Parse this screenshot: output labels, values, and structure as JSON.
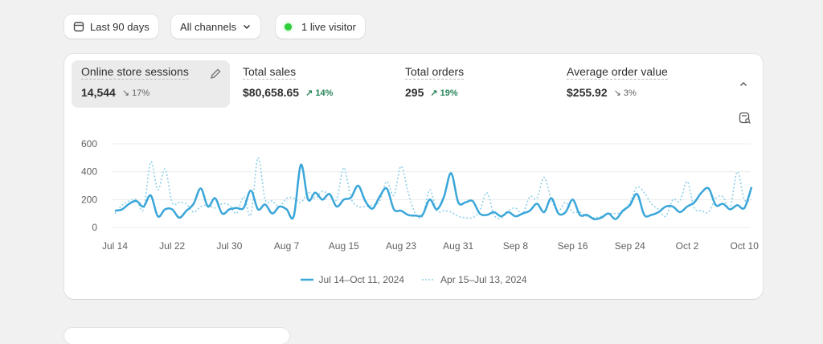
{
  "toolbar": {
    "date_range": "Last 90 days",
    "channels": "All channels",
    "live": "1 live visitor"
  },
  "metrics": [
    {
      "title": "Online store sessions",
      "value": "14,544",
      "change": "17%",
      "direction": "down"
    },
    {
      "title": "Total sales",
      "value": "$80,658.65",
      "change": "14%",
      "direction": "up"
    },
    {
      "title": "Total orders",
      "value": "295",
      "change": "19%",
      "direction": "up"
    },
    {
      "title": "Average order value",
      "value": "$255.92",
      "change": "3%",
      "direction": "down"
    }
  ],
  "colors": {
    "current": "#3aa6d9",
    "previous": "#8fcfe8",
    "live_dot": "#2ece3a",
    "up": "#29845a"
  },
  "chart_data": {
    "type": "line",
    "ylim": [
      0,
      600
    ],
    "yticks": [
      "0",
      "200",
      "400",
      "600"
    ],
    "xticks": [
      "Jul 14",
      "Jul 22",
      "Jul 30",
      "Aug 7",
      "Aug 15",
      "Aug 23",
      "Aug 31",
      "Sep 8",
      "Sep 16",
      "Sep 24",
      "Oct 2",
      "Oct 10"
    ],
    "grid": true,
    "legend": "bottom",
    "series": [
      {
        "name": "Jul 14–Oct 11, 2024",
        "style": "solid",
        "values": [
          120,
          130,
          170,
          190,
          150,
          230,
          80,
          130,
          130,
          70,
          120,
          170,
          280,
          150,
          210,
          100,
          130,
          140,
          140,
          265,
          130,
          165,
          100,
          150,
          130,
          80,
          450,
          200,
          250,
          200,
          240,
          150,
          200,
          215,
          300,
          190,
          135,
          220,
          280,
          130,
          120,
          90,
          85,
          90,
          200,
          130,
          220,
          390,
          180,
          180,
          190,
          100,
          90,
          110,
          80,
          110,
          80,
          100,
          120,
          170,
          110,
          210,
          100,
          110,
          200,
          90,
          90,
          60,
          70,
          100,
          60,
          120,
          160,
          240,
          90,
          90,
          110,
          150,
          150,
          110,
          150,
          180,
          250,
          280,
          160,
          170,
          130,
          160,
          140,
          290
        ]
      },
      {
        "name": "Apr 15–Jul 13, 2024",
        "style": "dotted",
        "values": [
          100,
          160,
          190,
          200,
          130,
          470,
          270,
          420,
          180,
          180,
          170,
          110,
          150,
          160,
          140,
          170,
          160,
          100,
          220,
          90,
          500,
          200,
          190,
          150,
          210,
          210,
          180,
          250,
          210,
          260,
          230,
          200,
          430,
          210,
          150,
          150,
          160,
          190,
          330,
          230,
          440,
          250,
          100,
          80,
          270,
          120,
          120,
          110,
          80,
          70,
          70,
          120,
          250,
          90,
          70,
          120,
          140,
          100,
          220,
          210,
          360,
          200,
          120,
          180,
          110,
          110,
          80,
          70,
          80,
          100,
          100,
          110,
          180,
          290,
          250,
          170,
          130,
          80,
          200,
          190,
          330,
          140,
          120,
          110,
          210,
          220,
          140,
          400,
          200,
          200
        ]
      }
    ]
  }
}
